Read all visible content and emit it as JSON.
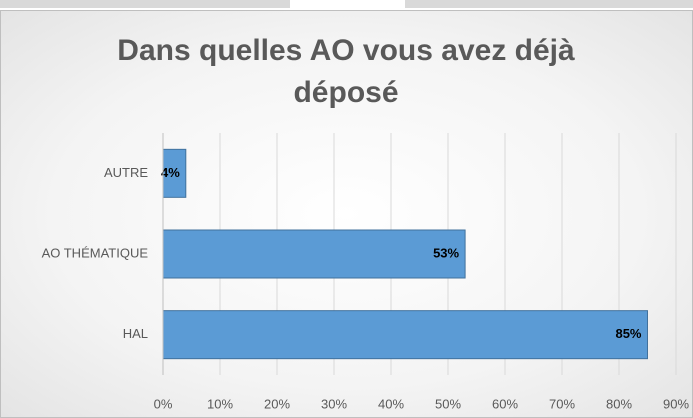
{
  "chart_data": {
    "type": "barh",
    "title": "Dans quelles AO vous avez déjà déposé",
    "categories": [
      "AUTRE",
      "AO THÉMATIQUE",
      "HAL"
    ],
    "values": [
      4,
      53,
      85
    ],
    "value_labels": [
      "4%",
      "53%",
      "85%"
    ],
    "color": "#5b9bd5",
    "xlim": [
      0,
      90
    ],
    "xticks": [
      {
        "value": 0,
        "label": "0%"
      },
      {
        "value": 10,
        "label": "10%"
      },
      {
        "value": 20,
        "label": "20%"
      },
      {
        "value": 30,
        "label": "30%"
      },
      {
        "value": 40,
        "label": "40%"
      },
      {
        "value": 50,
        "label": "50%"
      },
      {
        "value": 60,
        "label": "60%"
      },
      {
        "value": 70,
        "label": "70%"
      },
      {
        "value": 80,
        "label": "80%"
      },
      {
        "value": 90,
        "label": "90%"
      }
    ],
    "grid": true
  }
}
